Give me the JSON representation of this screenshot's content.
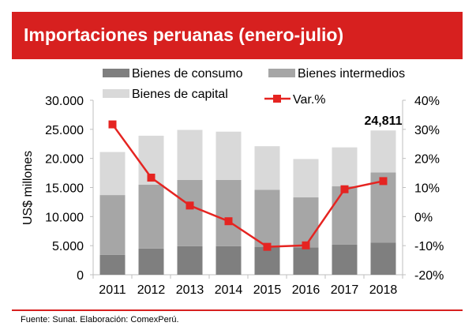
{
  "title": "Importaciones peruanas (enero-julio)",
  "source": "Fuente: Sunat. Elaboración: ComexPerú.",
  "chart_data": {
    "type": "bar",
    "stacked": true,
    "title": "Importaciones peruanas (enero-julio)",
    "ylabel": "US$ millones",
    "ylim": [
      0,
      30000
    ],
    "y_ticks": [
      "0",
      "5.000",
      "10.000",
      "15.000",
      "20.000",
      "25.000",
      "30.000"
    ],
    "y2lim": [
      -20,
      40
    ],
    "y2_ticks": [
      "-20%",
      "-10%",
      "0%",
      "10%",
      "20%",
      "30%",
      "40%"
    ],
    "categories": [
      "2011",
      "2012",
      "2013",
      "2014",
      "2015",
      "2016",
      "2017",
      "2018"
    ],
    "series": [
      {
        "name": "Bienes de consumo",
        "color": "#7f7f7f",
        "values": [
          3400,
          4500,
          4900,
          4900,
          4800,
          4700,
          5200,
          5500
        ]
      },
      {
        "name": "Bienes intermedios",
        "color": "#a6a6a6",
        "values": [
          10300,
          11000,
          11400,
          11400,
          9800,
          8600,
          10000,
          12100
        ]
      },
      {
        "name": "Bienes de capital",
        "color": "#d9d9d9",
        "values": [
          7400,
          8400,
          8600,
          8300,
          7500,
          6600,
          6700,
          7211
        ]
      },
      {
        "name": "Var.%",
        "type": "line",
        "axis": "right",
        "color": "#e52421",
        "values": [
          31.7,
          13.4,
          3.8,
          -1.6,
          -10.4,
          -9.9,
          9.4,
          12.2
        ]
      }
    ],
    "annotations": [
      {
        "category": "2018",
        "text": "24,811"
      }
    ],
    "legend": "top"
  }
}
